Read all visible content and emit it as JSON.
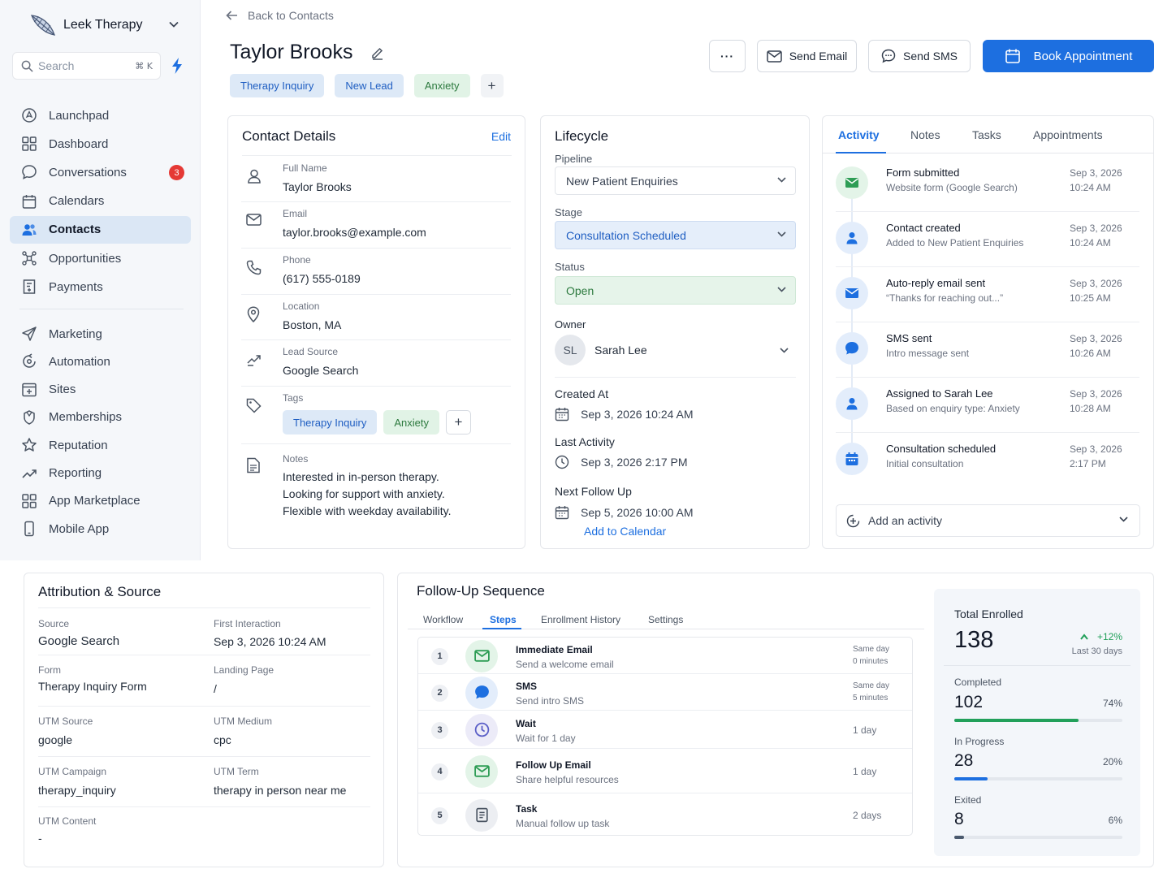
{
  "app": {
    "name": "Leek Therapy"
  },
  "search": {
    "placeholder": "Search",
    "shortcut": "⌘ K"
  },
  "nav": {
    "main": [
      {
        "label": "Launchpad",
        "icon": "launchpad-icon"
      },
      {
        "label": "Dashboard",
        "icon": "grid-icon"
      },
      {
        "label": "Conversations",
        "icon": "chat-icon",
        "badge": "3"
      },
      {
        "label": "Calendars",
        "icon": "calendar-icon"
      },
      {
        "label": "Contacts",
        "icon": "users-icon",
        "active": true
      },
      {
        "label": "Opportunities",
        "icon": "opportunities-icon"
      },
      {
        "label": "Payments",
        "icon": "payments-icon"
      }
    ],
    "secondary": [
      {
        "label": "Marketing",
        "icon": "send-icon"
      },
      {
        "label": "Automation",
        "icon": "automation-icon"
      },
      {
        "label": "Sites",
        "icon": "sites-icon"
      },
      {
        "label": "Memberships",
        "icon": "memberships-icon"
      },
      {
        "label": "Reputation",
        "icon": "star-icon"
      },
      {
        "label": "Reporting",
        "icon": "trend-icon"
      },
      {
        "label": "App Marketplace",
        "icon": "grid-icon"
      },
      {
        "label": "Mobile App",
        "icon": "phone-icon"
      }
    ]
  },
  "header": {
    "back_label": "Back to Contacts",
    "contact_name": "Taylor Brooks",
    "tags": [
      "Therapy Inquiry",
      "New Lead",
      "Anxiety"
    ],
    "add_tag": "+",
    "more_label": "···",
    "send_email": "Send Email",
    "send_sms": "Send SMS",
    "book": "Book Appointment"
  },
  "contact_details": {
    "title": "Contact Details",
    "edit": "Edit",
    "full_name_label": "Full Name",
    "full_name": "Taylor Brooks",
    "email_label": "Email",
    "email": "taylor.brooks@example.com",
    "phone_label": "Phone",
    "phone": "(617) 555-0189",
    "location_label": "Location",
    "location": "Boston, MA",
    "lead_source_label": "Lead Source",
    "lead_source": "Google Search",
    "tags_label": "Tags",
    "tags": [
      "Therapy Inquiry",
      "Anxiety"
    ],
    "add_tag": "+",
    "notes_label": "Notes",
    "notes": [
      "Interested in in-person therapy.",
      "Looking for support with anxiety.",
      "Flexible with weekday availability."
    ]
  },
  "lifecycle": {
    "title": "Lifecycle",
    "pipeline_label": "Pipeline",
    "pipeline": "New Patient Enquiries",
    "stage_label": "Stage",
    "stage": "Consultation Scheduled",
    "status_label": "Status",
    "status": "Open",
    "owner_label": "Owner",
    "owner_initials": "SL",
    "owner": "Sarah Lee",
    "created_label": "Created At",
    "created": "Sep 3, 2026 10:24 AM",
    "last_activity_label": "Last Activity",
    "last_activity": "Sep 3, 2026 2:17 PM",
    "next_follow_label": "Next Follow Up",
    "next_follow": "Sep 5, 2026 10:00 AM",
    "add_calendar": "Add to Calendar"
  },
  "activity": {
    "tabs": [
      "Activity",
      "Notes",
      "Tasks",
      "Appointments"
    ],
    "items": [
      {
        "title": "Form submitted",
        "sub": "Website form (Google Search)",
        "date": "Sep 3, 2026",
        "time": "10:24 AM",
        "icon": "mail-icon",
        "color": "#2e9d55",
        "bg": "#e3f4e8"
      },
      {
        "title": "Contact created",
        "sub": "Added to New Patient Enquiries",
        "date": "Sep 3, 2026",
        "time": "10:24 AM",
        "icon": "user-icon",
        "color": "#1d6fe0",
        "bg": "#e3edfb"
      },
      {
        "title": "Auto-reply email sent",
        "sub": "“Thanks for reaching out...”",
        "date": "Sep 3, 2026",
        "time": "10:25 AM",
        "icon": "mail-icon",
        "color": "#1d6fe0",
        "bg": "#e3edfb"
      },
      {
        "title": "SMS sent",
        "sub": "Intro message sent",
        "date": "Sep 3, 2026",
        "time": "10:26 AM",
        "icon": "chat-icon",
        "color": "#1d6fe0",
        "bg": "#e3edfb"
      },
      {
        "title": "Assigned to Sarah Lee",
        "sub": "Based on enquiry type: Anxiety",
        "date": "Sep 3, 2026",
        "time": "10:28 AM",
        "icon": "user-icon",
        "color": "#1d6fe0",
        "bg": "#e3edfb"
      },
      {
        "title": "Consultation scheduled",
        "sub": "Initial consultation",
        "date": "Sep 3, 2026",
        "time": "2:17 PM",
        "icon": "calendar-icon",
        "color": "#1d6fe0",
        "bg": "#e3edfb"
      }
    ],
    "add_activity": "Add an activity"
  },
  "attribution": {
    "title": "Attribution & Source",
    "source_label": "Source",
    "source": "Google Search",
    "first_label": "First Interaction",
    "first": "Sep 3, 2026 10:24 AM",
    "form_label": "Form",
    "form": "Therapy Inquiry Form",
    "landing_label": "Landing Page",
    "landing": "/",
    "utm_source_label": "UTM Source",
    "utm_source": "google",
    "utm_medium_label": "UTM Medium",
    "utm_medium": "cpc",
    "utm_campaign_label": "UTM Campaign",
    "utm_campaign": "therapy_inquiry",
    "utm_term_label": "UTM Term",
    "utm_term": "therapy in person near me",
    "utm_content_label": "UTM Content",
    "utm_content": "-"
  },
  "followup": {
    "title": "Follow-Up Sequence",
    "tabs": [
      "Workflow",
      "Steps",
      "Enrollment History",
      "Settings"
    ],
    "active_tab": 1,
    "steps": [
      {
        "n": "1",
        "title": "Immediate Email",
        "sub": "Send a welcome email",
        "d1": "Same day",
        "d2": "0 minutes",
        "icon": "mail-icon",
        "color": "#2e9d55",
        "bg": "#e3f4e8"
      },
      {
        "n": "2",
        "title": "SMS",
        "sub": "Send intro SMS",
        "d1": "Same day",
        "d2": "5 minutes",
        "icon": "chat-icon",
        "color": "#1d6fe0",
        "bg": "#e3edfb"
      },
      {
        "n": "3",
        "title": "Wait",
        "sub": "Wait for 1 day",
        "d1": "1 day",
        "d2": "",
        "icon": "clock-icon",
        "color": "#5b5fc7",
        "bg": "#ecebf8"
      },
      {
        "n": "4",
        "title": "Follow Up Email",
        "sub": "Share helpful resources",
        "d1": "1 day",
        "d2": "",
        "icon": "mail-icon",
        "color": "#2e9d55",
        "bg": "#e3f4e8"
      },
      {
        "n": "5",
        "title": "Task",
        "sub": "Manual follow up task",
        "d1": "2 days",
        "d2": "",
        "icon": "document-icon",
        "color": "#4b5563",
        "bg": "#eceef2"
      }
    ],
    "stats": {
      "total_label": "Total Enrolled",
      "total": "138",
      "change": "+12%",
      "period": "Last 30 days",
      "completed_label": "Completed",
      "completed": "102",
      "completed_pct": "74%",
      "completed_frac": 0.74,
      "in_progress_label": "In Progress",
      "in_progress": "28",
      "in_progress_pct": "20%",
      "in_progress_frac": 0.2,
      "exited_label": "Exited",
      "exited": "8",
      "exited_pct": "6%",
      "exited_frac": 0.06
    }
  },
  "colors": {
    "accent": "#1d6fe0",
    "success": "#22a05a",
    "badge": "#e53935"
  }
}
